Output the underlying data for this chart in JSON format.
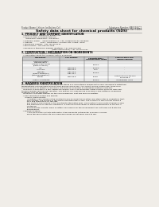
{
  "bg_color": "#f0ede8",
  "header_left": "Product Name: Lithium Ion Battery Cell",
  "header_right_line1": "Substance Number: MBR2580CT",
  "header_right_line2": "Established / Revision: Dec.7.2016",
  "title": "Safety data sheet for chemical products (SDS)",
  "s1_title": "1. PRODUCT AND COMPANY IDENTIFICATION",
  "s1_lines": [
    "  • Product name: Lithium Ion Battery Cell",
    "  • Product code: Cylindrical-type cell",
    "       INR18650J, INR18650L, INR18650A",
    "  • Company name:    Sanyo Electric Co., Ltd., Mobile Energy Company",
    "  • Address:             222-1  Kaminaizen, Sumoto-City, Hyogo, Japan",
    "  • Telephone number:  +81-799-26-4111",
    "  • Fax number:  +81-799-26-4129",
    "  • Emergency telephone number (daytime): +81-799-26-3962",
    "                                                   (Night and holiday): +81-799-26-4101"
  ],
  "s2_title": "2. COMPOSITION / INFORMATION ON INGREDIENTS",
  "s2_line1": "  • Substance or preparation: Preparation",
  "s2_line2": "  • Information about the chemical nature of product",
  "tbl_headers": [
    "Component",
    "CAS number",
    "Concentration /\nConcentration range",
    "Classification and\nhazard labeling"
  ],
  "tbl_rows": [
    [
      "Chemical name",
      "",
      "",
      ""
    ],
    [
      "General name",
      "",
      "",
      ""
    ],
    [
      "Lithium cobalt oxide",
      "",
      "30-50%",
      ""
    ],
    [
      "(LiMnxCoyNizO2)",
      "",
      "",
      ""
    ],
    [
      "Iron",
      "7439-89-6",
      "10-20%",
      "-"
    ],
    [
      "Aluminum",
      "7429-90-5",
      "2-5%",
      "-"
    ],
    [
      "Graphite",
      "7782-42-5",
      "10-20%",
      "-"
    ],
    [
      "(flake-y graphite-l)",
      "7782-44-7",
      "",
      ""
    ],
    [
      "(artificial graphite-l)",
      "",
      "",
      ""
    ],
    [
      "Copper",
      "7440-50-8",
      "5-15%",
      "Sensitization of the skin"
    ],
    [
      "",
      "",
      "",
      "group No.2"
    ],
    [
      "Organic electrolyte",
      "",
      "10-20%",
      "Inflammable liquid"
    ]
  ],
  "s3_title": "3. HAZARDS IDENTIFICATION",
  "s3_para1": [
    "For the battery cell, chemical materials are stored in a hermetically sealed metal case, designed to withstand",
    "temperatures and pressures encountered during normal use. As a result, during normal use, there is no",
    "physical danger of ignition or explosion and there is no danger of hazardous materials leakage.",
    "   However, if exposed to a fire, added mechanical shock, decomposed, arises electric shock by miss-use,",
    "the gas release vent can be operated. The battery cell case will be breached of fire-patterns, hazardous",
    "materials may be released.",
    "   Moreover, if heated strongly by the surrounding fire, soot gas may be emitted."
  ],
  "s3_para2": [
    "  • Most important hazard and effects:",
    "      Human health effects:",
    "         Inhalation: The release of the electrolyte has an anaesthesia action and stimulates in respiratory tract.",
    "         Skin contact: The release of the electrolyte stimulates a skin. The electrolyte skin contact causes a",
    "         sore and stimulation on the skin.",
    "         Eye contact: The release of the electrolyte stimulates eyes. The electrolyte eye contact causes a sore",
    "         and stimulation on the eye. Especially, a substance that causes a strong inflammation of the eye is",
    "         contained.",
    "         Environmental effects: Since a battery cell remains in the environment, do not throw out it into the",
    "         environment."
  ],
  "s3_para3": [
    "  • Specific hazards:",
    "         If the electrolyte contacts with water, it will generate detrimental hydrogen fluoride.",
    "         Since the seal electrolyte is inflammable liquid, do not bring close to fire."
  ]
}
